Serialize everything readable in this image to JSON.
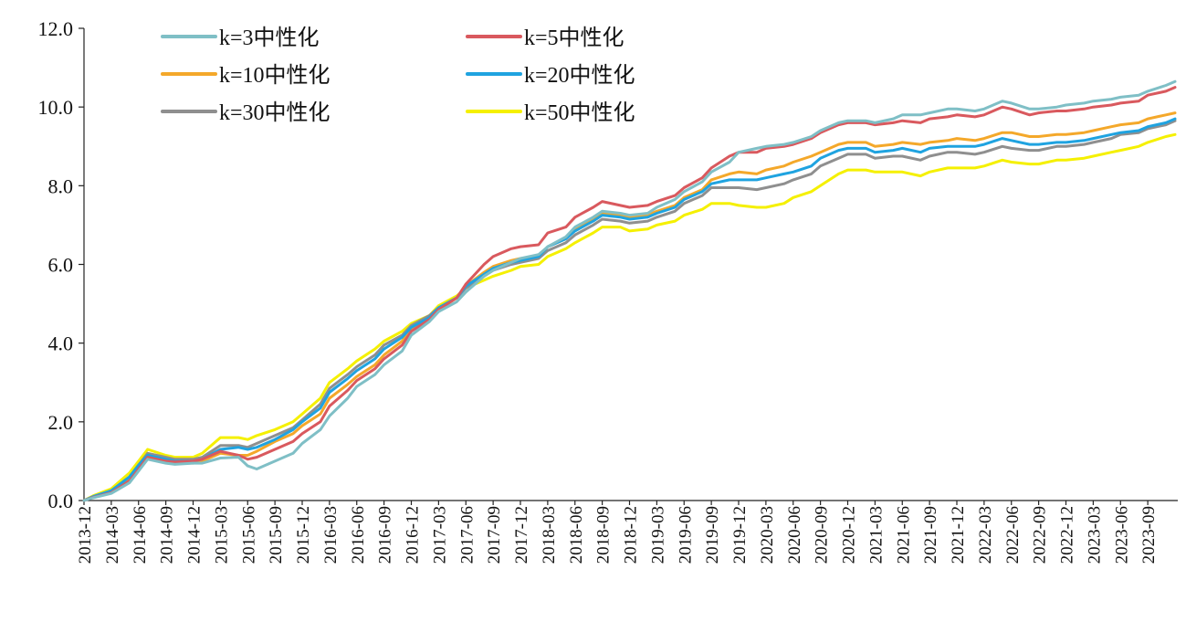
{
  "chart_data": {
    "type": "line",
    "title": "",
    "xlabel": "",
    "ylabel": "",
    "ylim": [
      0,
      12
    ],
    "yticks": [
      "0.0",
      "2.0",
      "4.0",
      "6.0",
      "8.0",
      "10.0",
      "12.0"
    ],
    "grid": false,
    "legend": "top-left, 2 columns",
    "x_start": "2013-12",
    "x_end": "2023-12",
    "xtick_labels": [
      "2013-12",
      "2014-03",
      "2014-06",
      "2014-09",
      "2014-12",
      "2015-03",
      "2015-06",
      "2015-09",
      "2015-12",
      "2016-03",
      "2016-06",
      "2016-09",
      "2016-12",
      "2017-03",
      "2017-06",
      "2017-09",
      "2017-12",
      "2018-03",
      "2018-06",
      "2018-09",
      "2018-12",
      "2019-03",
      "2019-06",
      "2019-09",
      "2019-12",
      "2020-03",
      "2020-06",
      "2020-09",
      "2020-12",
      "2021-03",
      "2021-06",
      "2021-09",
      "2021-12",
      "2022-03",
      "2022-06",
      "2022-09",
      "2022-12",
      "2023-03",
      "2023-06",
      "2023-09"
    ],
    "keypoint_dates": [
      "2013-12",
      "2014-01",
      "2014-03",
      "2014-05",
      "2014-06",
      "2014-07",
      "2014-09",
      "2014-10",
      "2014-12",
      "2015-01",
      "2015-03",
      "2015-05",
      "2015-06",
      "2015-07",
      "2015-09",
      "2015-11",
      "2015-12",
      "2016-02",
      "2016-03",
      "2016-05",
      "2016-06",
      "2016-08",
      "2016-09",
      "2016-11",
      "2016-12",
      "2017-02",
      "2017-03",
      "2017-05",
      "2017-06",
      "2017-08",
      "2017-09",
      "2017-11",
      "2017-12",
      "2018-02",
      "2018-03",
      "2018-05",
      "2018-06",
      "2018-08",
      "2018-09",
      "2018-11",
      "2018-12",
      "2019-02",
      "2019-03",
      "2019-05",
      "2019-06",
      "2019-08",
      "2019-09",
      "2019-11",
      "2019-12",
      "2020-02",
      "2020-03",
      "2020-05",
      "2020-06",
      "2020-08",
      "2020-09",
      "2020-11",
      "2020-12",
      "2021-02",
      "2021-03",
      "2021-05",
      "2021-06",
      "2021-08",
      "2021-09",
      "2021-11",
      "2021-12",
      "2022-02",
      "2022-03",
      "2022-05",
      "2022-06",
      "2022-08",
      "2022-09",
      "2022-11",
      "2022-12",
      "2023-02",
      "2023-03",
      "2023-05",
      "2023-06",
      "2023-08",
      "2023-09",
      "2023-11",
      "2023-12"
    ],
    "series": [
      {
        "name": "k=3中性化",
        "color": "#7fbfc6",
        "values": [
          0.0,
          0.07,
          0.18,
          0.45,
          0.75,
          1.05,
          0.95,
          0.92,
          0.95,
          0.95,
          1.08,
          1.1,
          0.88,
          0.8,
          1.0,
          1.2,
          1.45,
          1.8,
          2.15,
          2.6,
          2.9,
          3.2,
          3.45,
          3.8,
          4.2,
          4.55,
          4.8,
          5.05,
          5.3,
          5.7,
          5.85,
          6.05,
          6.15,
          6.25,
          6.45,
          6.7,
          6.95,
          7.2,
          7.35,
          7.3,
          7.25,
          7.3,
          7.45,
          7.65,
          7.85,
          8.1,
          8.35,
          8.6,
          8.85,
          8.95,
          9.0,
          9.05,
          9.1,
          9.25,
          9.4,
          9.6,
          9.65,
          9.65,
          9.6,
          9.7,
          9.8,
          9.8,
          9.85,
          9.95,
          9.95,
          9.9,
          9.95,
          10.15,
          10.1,
          9.95,
          9.95,
          10.0,
          10.05,
          10.1,
          10.15,
          10.2,
          10.25,
          10.3,
          10.4,
          10.55,
          10.65
        ]
      },
      {
        "name": "k=5中性化",
        "color": "#d9595e",
        "values": [
          0.0,
          0.08,
          0.2,
          0.5,
          0.8,
          1.1,
          1.0,
          0.98,
          1.0,
          1.05,
          1.25,
          1.15,
          1.05,
          1.1,
          1.3,
          1.5,
          1.7,
          2.0,
          2.4,
          2.8,
          3.05,
          3.35,
          3.6,
          3.95,
          4.3,
          4.6,
          4.85,
          5.15,
          5.5,
          6.0,
          6.2,
          6.4,
          6.45,
          6.5,
          6.8,
          6.95,
          7.2,
          7.45,
          7.6,
          7.5,
          7.45,
          7.5,
          7.6,
          7.75,
          7.95,
          8.2,
          8.45,
          8.75,
          8.85,
          8.85,
          8.95,
          9.0,
          9.05,
          9.2,
          9.35,
          9.55,
          9.6,
          9.6,
          9.55,
          9.6,
          9.65,
          9.6,
          9.7,
          9.75,
          9.8,
          9.75,
          9.8,
          10.0,
          9.95,
          9.8,
          9.85,
          9.9,
          9.9,
          9.95,
          10.0,
          10.05,
          10.1,
          10.15,
          10.3,
          10.4,
          10.5
        ]
      },
      {
        "name": "k=10中性化",
        "color": "#f4a82a",
        "values": [
          0.0,
          0.09,
          0.22,
          0.55,
          0.85,
          1.1,
          1.02,
          1.0,
          0.95,
          1.0,
          1.2,
          1.15,
          1.15,
          1.25,
          1.5,
          1.7,
          1.9,
          2.2,
          2.6,
          2.95,
          3.15,
          3.45,
          3.7,
          4.05,
          4.35,
          4.6,
          4.85,
          5.15,
          5.45,
          5.8,
          5.95,
          6.1,
          6.15,
          6.2,
          6.45,
          6.65,
          6.9,
          7.15,
          7.3,
          7.25,
          7.2,
          7.25,
          7.35,
          7.5,
          7.7,
          7.9,
          8.15,
          8.3,
          8.35,
          8.3,
          8.4,
          8.5,
          8.6,
          8.75,
          8.85,
          9.05,
          9.1,
          9.1,
          9.0,
          9.05,
          9.1,
          9.05,
          9.1,
          9.15,
          9.2,
          9.15,
          9.2,
          9.35,
          9.35,
          9.25,
          9.25,
          9.3,
          9.3,
          9.35,
          9.4,
          9.5,
          9.55,
          9.6,
          9.7,
          9.8,
          9.85
        ]
      },
      {
        "name": "k=20中性化",
        "color": "#1fa3e0",
        "values": [
          0.0,
          0.1,
          0.25,
          0.6,
          0.9,
          1.15,
          1.05,
          1.0,
          1.0,
          1.05,
          1.3,
          1.35,
          1.3,
          1.35,
          1.55,
          1.8,
          2.0,
          2.35,
          2.75,
          3.1,
          3.3,
          3.6,
          3.85,
          4.15,
          4.4,
          4.65,
          4.9,
          5.15,
          5.45,
          5.75,
          5.9,
          6.05,
          6.1,
          6.2,
          6.45,
          6.65,
          6.85,
          7.1,
          7.25,
          7.2,
          7.15,
          7.2,
          7.3,
          7.45,
          7.65,
          7.85,
          8.05,
          8.15,
          8.15,
          8.15,
          8.2,
          8.3,
          8.35,
          8.5,
          8.7,
          8.9,
          8.95,
          8.95,
          8.85,
          8.9,
          8.95,
          8.85,
          8.95,
          9.0,
          9.0,
          9.0,
          9.05,
          9.2,
          9.15,
          9.05,
          9.05,
          9.1,
          9.1,
          9.15,
          9.2,
          9.3,
          9.35,
          9.4,
          9.5,
          9.6,
          9.7
        ]
      },
      {
        "name": "k=30中性化",
        "color": "#8f8f8f",
        "values": [
          0.0,
          0.1,
          0.25,
          0.6,
          0.9,
          1.2,
          1.1,
          1.05,
          1.05,
          1.1,
          1.4,
          1.4,
          1.35,
          1.45,
          1.65,
          1.85,
          2.05,
          2.45,
          2.85,
          3.2,
          3.4,
          3.7,
          3.95,
          4.2,
          4.45,
          4.7,
          4.9,
          5.15,
          5.4,
          5.7,
          5.85,
          6.0,
          6.05,
          6.15,
          6.35,
          6.55,
          6.75,
          7.0,
          7.15,
          7.1,
          7.05,
          7.1,
          7.2,
          7.35,
          7.55,
          7.75,
          7.95,
          7.95,
          7.95,
          7.9,
          7.95,
          8.05,
          8.15,
          8.3,
          8.5,
          8.7,
          8.8,
          8.8,
          8.7,
          8.75,
          8.75,
          8.65,
          8.75,
          8.85,
          8.85,
          8.8,
          8.85,
          9.0,
          8.95,
          8.9,
          8.9,
          9.0,
          9.0,
          9.05,
          9.1,
          9.2,
          9.3,
          9.35,
          9.45,
          9.55,
          9.65
        ]
      },
      {
        "name": "k=50中性化",
        "color": "#f5f000",
        "values": [
          0.0,
          0.12,
          0.3,
          0.7,
          1.0,
          1.3,
          1.15,
          1.1,
          1.1,
          1.2,
          1.6,
          1.6,
          1.55,
          1.65,
          1.8,
          2.0,
          2.2,
          2.6,
          3.0,
          3.35,
          3.55,
          3.85,
          4.05,
          4.3,
          4.5,
          4.7,
          4.95,
          5.2,
          5.4,
          5.6,
          5.7,
          5.85,
          5.95,
          6.0,
          6.2,
          6.4,
          6.55,
          6.8,
          6.95,
          6.95,
          6.85,
          6.9,
          7.0,
          7.1,
          7.25,
          7.4,
          7.55,
          7.55,
          7.5,
          7.45,
          7.45,
          7.55,
          7.7,
          7.85,
          8.0,
          8.3,
          8.4,
          8.4,
          8.35,
          8.35,
          8.35,
          8.25,
          8.35,
          8.45,
          8.45,
          8.45,
          8.5,
          8.65,
          8.6,
          8.55,
          8.55,
          8.65,
          8.65,
          8.7,
          8.75,
          8.85,
          8.9,
          9.0,
          9.1,
          9.25,
          9.3
        ]
      }
    ]
  }
}
